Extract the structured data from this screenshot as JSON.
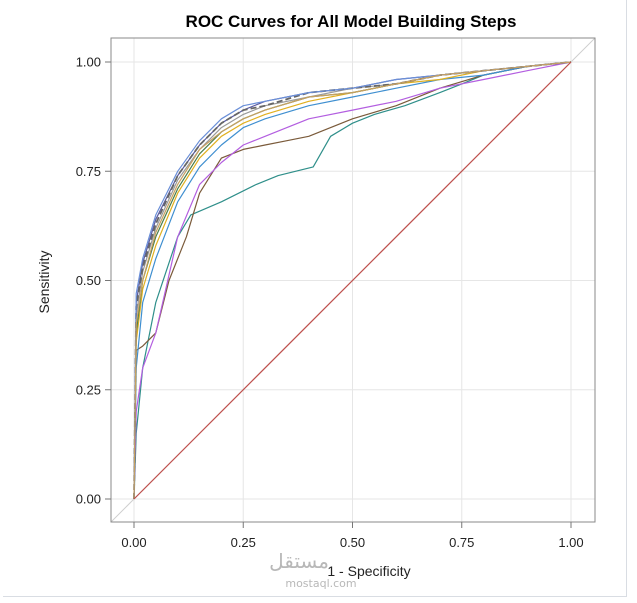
{
  "watermark": {
    "glyph": "مستقل",
    "text": "mostaql.com"
  },
  "chart_data": {
    "type": "line",
    "title": "ROC Curves for All Model Building Steps",
    "xlabel": "1 - Specificity",
    "ylabel": "Sensitivity",
    "xlim": [
      0,
      1
    ],
    "ylim": [
      0,
      1
    ],
    "xticks": [
      "0.00",
      "0.25",
      "0.50",
      "0.75",
      "1.00"
    ],
    "yticks": [
      "0.00",
      "0.25",
      "0.50",
      "0.75",
      "1.00"
    ],
    "grid": true,
    "legend": "none",
    "series": [
      {
        "color": "#2f8f8a",
        "style": "solid",
        "x": [
          0,
          0.005,
          0.02,
          0.05,
          0.1,
          0.13,
          0.2,
          0.28,
          0.33,
          0.41,
          0.45,
          0.5,
          0.55,
          0.62,
          0.7,
          0.75,
          0.8,
          0.9,
          1
        ],
        "y": [
          0,
          0.15,
          0.3,
          0.45,
          0.6,
          0.65,
          0.68,
          0.72,
          0.74,
          0.76,
          0.83,
          0.86,
          0.88,
          0.9,
          0.93,
          0.95,
          0.97,
          0.99,
          1
        ]
      },
      {
        "color": "#7a5a3a",
        "style": "solid",
        "x": [
          0,
          0.005,
          0.02,
          0.05,
          0.08,
          0.12,
          0.15,
          0.2,
          0.25,
          0.3,
          0.35,
          0.4,
          0.45,
          0.5,
          0.6,
          0.7,
          0.8,
          0.9,
          1
        ],
        "y": [
          0,
          0.34,
          0.35,
          0.38,
          0.5,
          0.6,
          0.7,
          0.78,
          0.8,
          0.81,
          0.82,
          0.83,
          0.85,
          0.87,
          0.9,
          0.94,
          0.97,
          0.99,
          1
        ]
      },
      {
        "color": "#b35ee0",
        "style": "solid",
        "x": [
          0,
          0.005,
          0.02,
          0.05,
          0.1,
          0.15,
          0.2,
          0.25,
          0.3,
          0.35,
          0.4,
          0.5,
          0.6,
          0.7,
          0.8,
          0.9,
          1
        ],
        "y": [
          0,
          0.2,
          0.3,
          0.38,
          0.6,
          0.72,
          0.77,
          0.81,
          0.83,
          0.85,
          0.87,
          0.89,
          0.91,
          0.94,
          0.96,
          0.98,
          1
        ]
      },
      {
        "color": "#3f8fd0",
        "style": "solid",
        "x": [
          0,
          0.005,
          0.02,
          0.05,
          0.1,
          0.15,
          0.2,
          0.25,
          0.3,
          0.4,
          0.5,
          0.6,
          0.7,
          0.8,
          0.9,
          1
        ],
        "y": [
          0,
          0.3,
          0.45,
          0.55,
          0.68,
          0.76,
          0.81,
          0.85,
          0.87,
          0.9,
          0.92,
          0.94,
          0.96,
          0.97,
          0.99,
          1
        ]
      },
      {
        "color": "#e0b020",
        "style": "solid",
        "x": [
          0,
          0.005,
          0.02,
          0.05,
          0.1,
          0.15,
          0.2,
          0.25,
          0.3,
          0.4,
          0.5,
          0.6,
          0.7,
          0.8,
          0.9,
          1
        ],
        "y": [
          0,
          0.36,
          0.48,
          0.58,
          0.7,
          0.78,
          0.83,
          0.86,
          0.88,
          0.91,
          0.93,
          0.95,
          0.96,
          0.98,
          0.99,
          1
        ]
      },
      {
        "color": "#4a7e4a",
        "style": "solid",
        "x": [
          0,
          0.005,
          0.02,
          0.05,
          0.1,
          0.15,
          0.2,
          0.25,
          0.3,
          0.4,
          0.5,
          0.6,
          0.7,
          0.8,
          0.9,
          1
        ],
        "y": [
          0,
          0.38,
          0.5,
          0.6,
          0.71,
          0.79,
          0.84,
          0.87,
          0.89,
          0.92,
          0.93,
          0.95,
          0.97,
          0.98,
          0.99,
          1
        ]
      },
      {
        "color": "#9a9a9a",
        "style": "solid",
        "x": [
          0,
          0.005,
          0.02,
          0.05,
          0.1,
          0.15,
          0.2,
          0.25,
          0.3,
          0.4,
          0.5,
          0.6,
          0.7,
          0.8,
          0.9,
          1
        ],
        "y": [
          0,
          0.42,
          0.52,
          0.62,
          0.73,
          0.8,
          0.85,
          0.88,
          0.9,
          0.92,
          0.94,
          0.95,
          0.97,
          0.98,
          0.99,
          1
        ]
      },
      {
        "color": "#5a5aa0",
        "style": "solid",
        "x": [
          0,
          0.005,
          0.02,
          0.05,
          0.1,
          0.15,
          0.2,
          0.25,
          0.3,
          0.4,
          0.5,
          0.6,
          0.7,
          0.8,
          0.9,
          1
        ],
        "y": [
          0,
          0.45,
          0.54,
          0.64,
          0.74,
          0.81,
          0.86,
          0.89,
          0.91,
          0.93,
          0.94,
          0.96,
          0.97,
          0.98,
          0.99,
          1
        ]
      },
      {
        "color": "#666666",
        "style": "dashed",
        "x": [
          0,
          0.005,
          0.02,
          0.05,
          0.1,
          0.15,
          0.2,
          0.25,
          0.3,
          0.4,
          0.5,
          0.6,
          0.7,
          0.8,
          0.9,
          1
        ],
        "y": [
          0,
          0.44,
          0.53,
          0.63,
          0.74,
          0.81,
          0.86,
          0.89,
          0.9,
          0.93,
          0.94,
          0.95,
          0.97,
          0.98,
          0.99,
          1
        ]
      },
      {
        "color": "#6a8fd8",
        "style": "solid",
        "x": [
          0,
          0.005,
          0.02,
          0.05,
          0.1,
          0.15,
          0.2,
          0.25,
          0.3,
          0.35,
          0.4,
          0.5,
          0.6,
          0.7,
          0.8,
          0.9,
          1
        ],
        "y": [
          0,
          0.47,
          0.55,
          0.65,
          0.75,
          0.82,
          0.87,
          0.9,
          0.91,
          0.92,
          0.93,
          0.94,
          0.96,
          0.97,
          0.98,
          0.99,
          1
        ]
      },
      {
        "color": "#c7a060",
        "style": "solid",
        "x": [
          0,
          0.005,
          0.02,
          0.05,
          0.1,
          0.15,
          0.2,
          0.25,
          0.3,
          0.4,
          0.5,
          0.6,
          0.7,
          0.8,
          0.9,
          1
        ],
        "y": [
          0,
          0.4,
          0.5,
          0.61,
          0.72,
          0.8,
          0.84,
          0.87,
          0.89,
          0.92,
          0.93,
          0.95,
          0.97,
          0.98,
          0.99,
          1
        ]
      },
      {
        "color": "#c0504d",
        "style": "solid",
        "x": [
          0,
          1
        ],
        "y": [
          0,
          1
        ]
      }
    ]
  }
}
